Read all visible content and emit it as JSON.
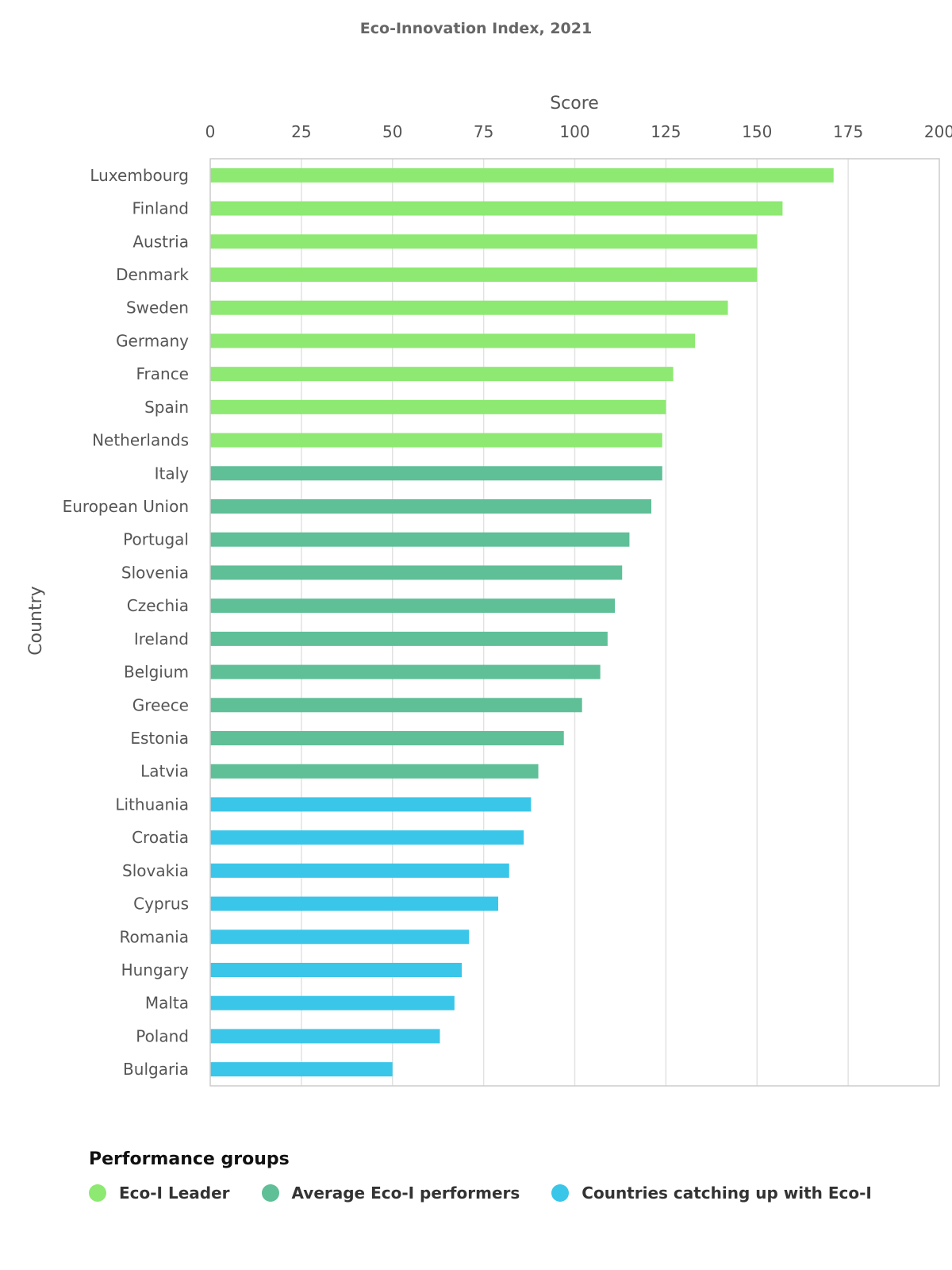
{
  "chart_data": {
    "type": "bar",
    "orientation": "horizontal",
    "title": "Eco-Innovation Index, 2021",
    "xlabel": "Score",
    "ylabel": "Country",
    "xlim": [
      0,
      200
    ],
    "xticks": [
      "0",
      "25",
      "50",
      "75",
      "100",
      "125",
      "150",
      "175",
      "200"
    ],
    "x_axis_position": "top",
    "grid": true,
    "categories": [
      "Luxembourg",
      "Finland",
      "Austria",
      "Denmark",
      "Sweden",
      "Germany",
      "France",
      "Spain",
      "Netherlands",
      "Italy",
      "European Union",
      "Portugal",
      "Slovenia",
      "Czechia",
      "Ireland",
      "Belgium",
      "Greece",
      "Estonia",
      "Latvia",
      "Lithuania",
      "Croatia",
      "Slovakia",
      "Cyprus",
      "Romania",
      "Hungary",
      "Malta",
      "Poland",
      "Bulgaria"
    ],
    "values": [
      171,
      157,
      150,
      150,
      142,
      133,
      127,
      125,
      124,
      124,
      121,
      115,
      113,
      111,
      109,
      107,
      102,
      97,
      90,
      88,
      86,
      82,
      79,
      71,
      69,
      67,
      63,
      50
    ],
    "groups": [
      0,
      0,
      0,
      0,
      0,
      0,
      0,
      0,
      0,
      1,
      1,
      1,
      1,
      1,
      1,
      1,
      1,
      1,
      1,
      2,
      2,
      2,
      2,
      2,
      2,
      2,
      2,
      2
    ],
    "legend": {
      "title": "Performance groups",
      "placement": "bottom",
      "items": [
        {
          "label": "Eco-I Leader",
          "color": "#8de971"
        },
        {
          "label": "Average Eco-I performers",
          "color": "#5fbf97"
        },
        {
          "label": "Countries catching up with Eco-I",
          "color": "#3ac6e9"
        }
      ]
    }
  }
}
